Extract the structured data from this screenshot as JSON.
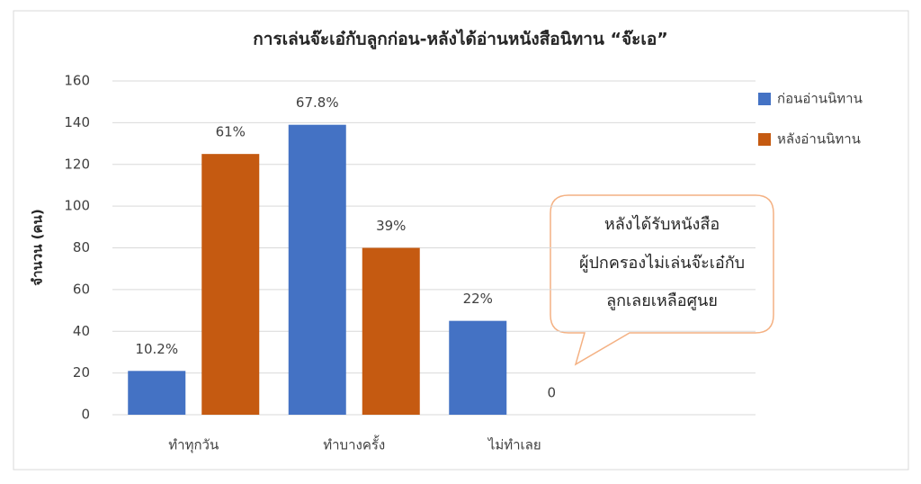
{
  "chart_data": {
    "type": "bar",
    "title": "การเล่นจ๊ะเอ๋กับลูกก่อน-หลังได้อ่านหนังสือนิทาน “จ๊ะเอ”",
    "y_label": "จำนวน (คน)",
    "categories": [
      "ทำทุกวัน",
      "ทำบางครั้ง",
      "ไม่ทำเลย"
    ],
    "series": [
      {
        "name": "ก่อนอ่านนิทาน",
        "color": "#4472c4",
        "values": [
          21,
          139,
          45
        ],
        "value_labels": [
          "10.2%",
          "67.8%",
          "22%"
        ]
      },
      {
        "name": "หลังอ่านนิทาน",
        "color": "#c55a11",
        "values": [
          125,
          80,
          0
        ],
        "value_labels": [
          "61%",
          "39%",
          "0"
        ]
      }
    ],
    "ylim": [
      0,
      160
    ],
    "yticks": [
      0,
      20,
      40,
      60,
      80,
      100,
      120,
      140,
      160
    ],
    "grid": true,
    "legend": "right",
    "annotation": [
      "หลังได้รับหนังสือ",
      "ผู้ปกครองไม่เล่นจ๊ะเอ๋กับ",
      "ลูกเลยเหลือศูนย"
    ]
  }
}
